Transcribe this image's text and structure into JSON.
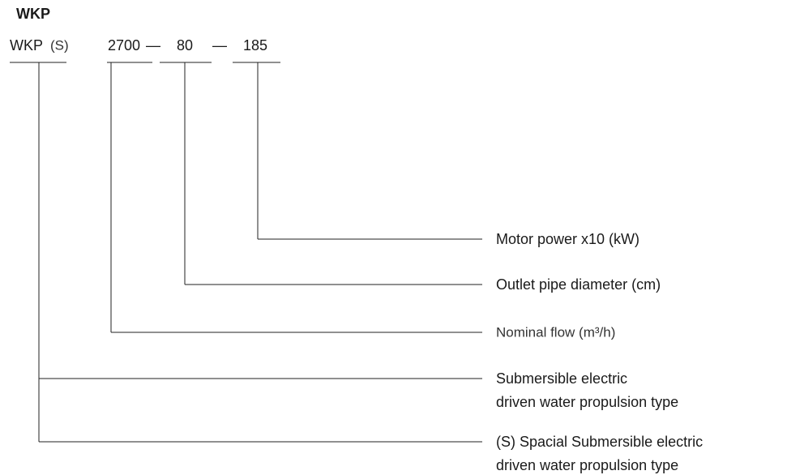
{
  "title": "WKP",
  "code": [
    "WKP",
    "(S)",
    "2700",
    "—",
    "80",
    "—",
    "185"
  ],
  "descriptions": [
    {
      "lines": [
        "Motor power  x10 (kW)"
      ]
    },
    {
      "lines": [
        "Outlet pipe diameter (cm)"
      ]
    },
    {
      "lines": [
        "Nominal flow (m³/h)"
      ]
    },
    {
      "lines": [
        "Submersible electric",
        "driven water propulsion type"
      ]
    },
    {
      "lines": [
        "(S) Spacial Submersible electric",
        "driven water propulsion type"
      ]
    }
  ]
}
